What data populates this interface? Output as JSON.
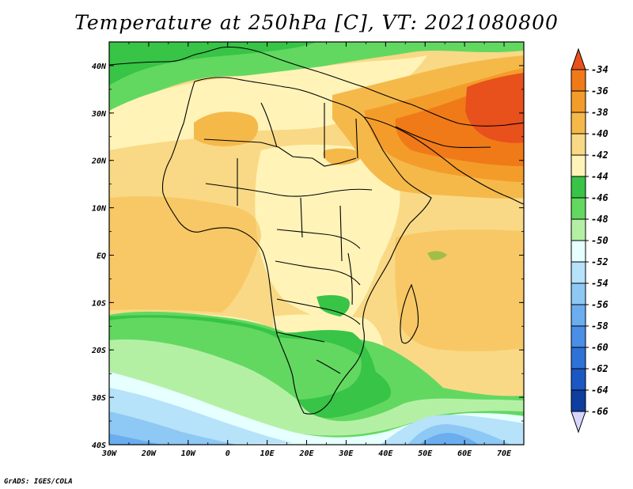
{
  "title": "Temperature at 250hPa [C], VT: 2021080800",
  "credit": "GrADS: IGES/COLA",
  "map": {
    "lon_range": [
      -30,
      75
    ],
    "lat_range": [
      -40,
      45
    ],
    "lat_ticks": [
      "40N",
      "30N",
      "20N",
      "10N",
      "EQ",
      "10S",
      "20S",
      "30S",
      "40S"
    ],
    "lon_ticks": [
      "30W",
      "20W",
      "10W",
      "0",
      "10E",
      "20E",
      "30E",
      "40E",
      "50E",
      "60E",
      "70E"
    ]
  },
  "colorbar": {
    "labels": [
      "-34",
      "-36",
      "-38",
      "-40",
      "-42",
      "-44",
      "-46",
      "-48",
      "-50",
      "-52",
      "-54",
      "-56",
      "-58",
      "-60",
      "-62",
      "-64",
      "-66"
    ],
    "colors": [
      "#e8501c",
      "#f07a18",
      "#f49c2a",
      "#f5b94a",
      "#f9d985",
      "#fff3b8",
      "#38c446",
      "#62d861",
      "#b4f0a4",
      "#e6ffff",
      "#b6e2fa",
      "#8ec8f4",
      "#6aaef0",
      "#4a8ee6",
      "#2e72d8",
      "#1c58c4",
      "#0e3e9e",
      "#0c1a70",
      "#d8d6ff"
    ]
  }
}
